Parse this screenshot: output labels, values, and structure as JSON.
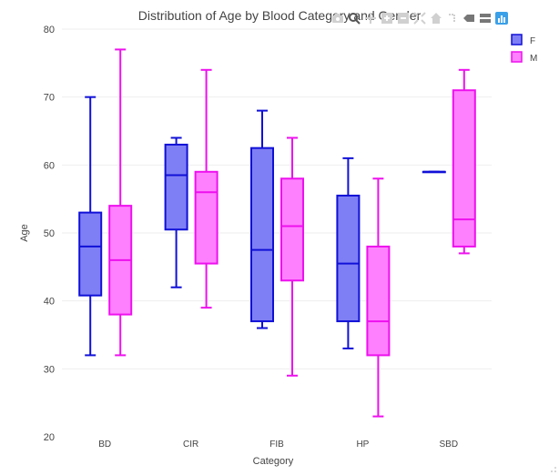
{
  "chart_data": {
    "type": "box",
    "title": "Distribution of Age by Blood Category and Gender",
    "xlabel": "Category",
    "ylabel": "Age",
    "ylim": [
      20,
      80
    ],
    "yticks": [
      20,
      30,
      40,
      50,
      60,
      70,
      80
    ],
    "grid": true,
    "legend_position": "top-right",
    "categories": [
      "BD",
      "CIR",
      "FIB",
      "HP",
      "SBD"
    ],
    "series": [
      {
        "name": "F",
        "color": "#1010d8",
        "fill": "#7f7ff5",
        "boxes": [
          {
            "category": "BD",
            "min": 32,
            "q1": 40.8,
            "median": 48,
            "q3": 53,
            "max": 70
          },
          {
            "category": "CIR",
            "min": 42,
            "q1": 50.5,
            "median": 58.5,
            "q3": 63,
            "max": 64
          },
          {
            "category": "FIB",
            "min": 36,
            "q1": 37,
            "median": 47.5,
            "q3": 62.5,
            "max": 68
          },
          {
            "category": "HP",
            "min": 33,
            "q1": 37,
            "median": 45.5,
            "q3": 55.5,
            "max": 61
          },
          {
            "category": "SBD",
            "min": 59,
            "q1": 59,
            "median": 59,
            "q3": 59,
            "max": 59
          }
        ]
      },
      {
        "name": "M",
        "color": "#ee10ee",
        "fill": "#ff80ff",
        "boxes": [
          {
            "category": "BD",
            "min": 32,
            "q1": 38,
            "median": 46,
            "q3": 54,
            "max": 77
          },
          {
            "category": "CIR",
            "min": 39,
            "q1": 45.5,
            "median": 56,
            "q3": 59,
            "max": 74
          },
          {
            "category": "FIB",
            "min": 29,
            "q1": 43,
            "median": 51,
            "q3": 58,
            "max": 64
          },
          {
            "category": "HP",
            "min": 23,
            "q1": 32,
            "median": 37,
            "q3": 48,
            "max": 58
          },
          {
            "category": "SBD",
            "min": 47,
            "q1": 48,
            "median": 52,
            "q3": 71,
            "max": 74
          }
        ]
      }
    ]
  },
  "modebar": {
    "icons": [
      "camera-icon",
      "zoom-icon",
      "pan-icon",
      "zoom-in-icon",
      "zoom-out-icon",
      "autoscale-icon",
      "reset-axes-icon",
      "spike-lines-icon",
      "hover-closest-icon",
      "hover-compare-icon",
      "plotly-logo-icon"
    ]
  }
}
